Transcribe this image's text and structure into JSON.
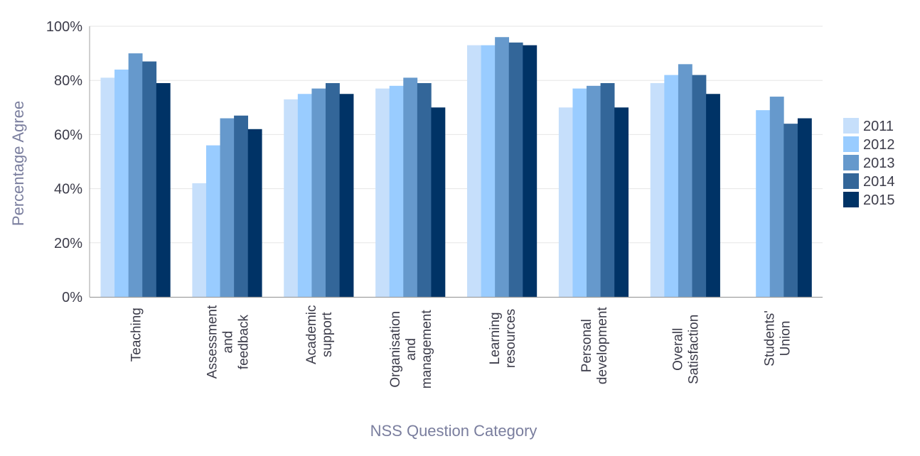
{
  "chart_data": {
    "type": "bar",
    "title": "",
    "xlabel": "NSS Question Category",
    "ylabel": "Percentage Agree",
    "ylim": [
      0,
      100
    ],
    "yticks": [
      "0%",
      "20%",
      "40%",
      "60%",
      "80%",
      "100%"
    ],
    "grid": true,
    "legend_position": "right",
    "categories": [
      "Teaching",
      "Assessment and feedback",
      "Academic support",
      "Organisation and management",
      "Learning resources",
      "Personal development",
      "Overall Satisfaction",
      "Students' Union"
    ],
    "category_lines": [
      [
        "Teaching"
      ],
      [
        "Assessment",
        "and",
        "feedback"
      ],
      [
        "Academic",
        "support"
      ],
      [
        "Organisation",
        "and",
        "management"
      ],
      [
        "Learning",
        "resources"
      ],
      [
        "Personal",
        "development"
      ],
      [
        "Overall",
        "Satisfaction"
      ],
      [
        "Students'",
        "Union"
      ]
    ],
    "series": [
      {
        "name": "2011",
        "color": "#c6dffb",
        "values": [
          81,
          42,
          73,
          77,
          93,
          70,
          79,
          null
        ]
      },
      {
        "name": "2012",
        "color": "#99ccff",
        "values": [
          84,
          56,
          75,
          78,
          93,
          77,
          82,
          69
        ]
      },
      {
        "name": "2013",
        "color": "#6699cc",
        "values": [
          90,
          66,
          77,
          81,
          96,
          78,
          86,
          74
        ]
      },
      {
        "name": "2014",
        "color": "#336699",
        "values": [
          87,
          67,
          79,
          79,
          94,
          79,
          82,
          64
        ]
      },
      {
        "name": "2015",
        "color": "#003366",
        "values": [
          79,
          62,
          75,
          70,
          93,
          70,
          75,
          66
        ]
      }
    ]
  },
  "labels": {
    "ylabel": "Percentage Agree",
    "xlabel": "NSS Question Category"
  }
}
